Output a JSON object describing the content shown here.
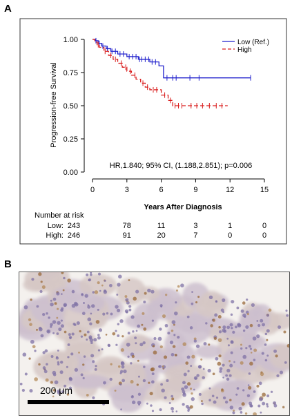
{
  "panel_a_label": "A",
  "panel_b_label": "B",
  "chart_data": {
    "type": "line",
    "subtype": "kaplan-meier",
    "ylabel": "Progression-free Survival",
    "xlabel": "Years After Diagnosis",
    "xlim": [
      0,
      15
    ],
    "ylim": [
      0,
      1
    ],
    "x_ticks": [
      "0",
      "3",
      "6",
      "9",
      "12",
      "15"
    ],
    "y_ticks": [
      "0.00",
      "0.25",
      "0.50",
      "0.75",
      "1.00"
    ],
    "grid": false,
    "legend_position": "top-right",
    "annotation": "HR,1.840; 95% CI, (1.188,2.851); p=0.006",
    "series": [
      {
        "name": "Low (Ref.)",
        "color": "#1f1fcc",
        "style": "solid",
        "steps": [
          [
            0,
            1.0
          ],
          [
            0.25,
            0.99
          ],
          [
            0.5,
            0.97
          ],
          [
            0.8,
            0.95
          ],
          [
            1.2,
            0.93
          ],
          [
            1.6,
            0.91
          ],
          [
            2.2,
            0.89
          ],
          [
            3.0,
            0.87
          ],
          [
            4.0,
            0.85
          ],
          [
            5.0,
            0.83
          ],
          [
            5.8,
            0.8
          ],
          [
            6.2,
            0.71
          ],
          [
            13.8,
            0.71
          ]
        ],
        "censor_x": [
          0.3,
          0.6,
          0.9,
          1.3,
          1.7,
          2.0,
          2.4,
          2.7,
          3.2,
          3.5,
          3.8,
          4.1,
          4.3,
          4.6,
          4.9,
          5.2,
          5.5,
          6.5,
          7.0,
          7.3,
          8.5,
          9.3,
          13.8
        ]
      },
      {
        "name": "High",
        "color": "#d91c1c",
        "style": "dashed",
        "steps": [
          [
            0,
            1.0
          ],
          [
            0.2,
            0.98
          ],
          [
            0.4,
            0.96
          ],
          [
            0.6,
            0.94
          ],
          [
            1.0,
            0.91
          ],
          [
            1.4,
            0.88
          ],
          [
            1.8,
            0.85
          ],
          [
            2.2,
            0.82
          ],
          [
            2.6,
            0.79
          ],
          [
            3.0,
            0.76
          ],
          [
            3.4,
            0.73
          ],
          [
            3.8,
            0.7
          ],
          [
            4.2,
            0.67
          ],
          [
            4.6,
            0.64
          ],
          [
            5.0,
            0.62
          ],
          [
            6.0,
            0.58
          ],
          [
            6.6,
            0.54
          ],
          [
            7.0,
            0.5
          ],
          [
            11.8,
            0.5
          ]
        ],
        "censor_x": [
          0.5,
          1.1,
          1.6,
          2.0,
          2.5,
          2.9,
          3.3,
          3.7,
          4.4,
          4.8,
          5.3,
          5.6,
          6.3,
          6.8,
          7.2,
          7.5,
          7.8,
          8.6,
          9.1,
          9.6,
          10.2,
          10.8,
          11.3
        ]
      }
    ]
  },
  "risk_table": {
    "title": "Number at risk",
    "rows": [
      {
        "label": "Low:",
        "values": [
          "243",
          "78",
          "11",
          "3",
          "1",
          "0"
        ]
      },
      {
        "label": "High:",
        "values": [
          "246",
          "91",
          "20",
          "7",
          "0",
          "0"
        ]
      }
    ]
  },
  "panel_b": {
    "scale_label": "200 μm"
  }
}
